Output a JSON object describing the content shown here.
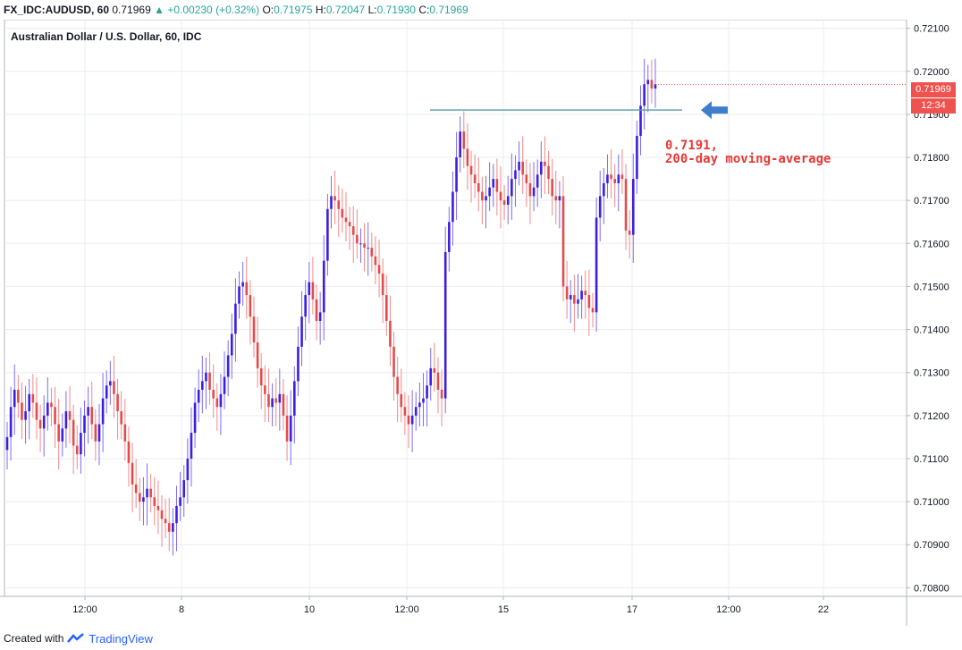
{
  "header": {
    "symbol": "FX_IDC:AUDUSD, 60",
    "last": "0.71969",
    "change": "+0.00230 (+0.32%)",
    "open_label": "O:",
    "open": "0.71975",
    "high_label": "H:",
    "high": "0.72047",
    "low_label": "L:",
    "low": "0.71930",
    "close_label": "C:",
    "close": "0.71969"
  },
  "chart_title": "Australian Dollar / U.S. Dollar, 60, IDC",
  "price_label": "0.71969",
  "countdown_label": "12:34",
  "annotation": {
    "line1": "0.7191,",
    "line2": "200-day moving-average",
    "level": 0.7191
  },
  "footer": {
    "created_with": "Created with",
    "brand": "TradingView"
  },
  "colors": {
    "up": "#2962ff",
    "down": "#ef5350",
    "up_candle": "#3b1fe0",
    "down_candle": "#e34b4b",
    "line": "#5e9ca8",
    "arrow": "#3d7fcd"
  },
  "chart_data": {
    "type": "candlestick",
    "title": "Australian Dollar / U.S. Dollar, 60, IDC",
    "ylim": [
      0.7078,
      0.7212
    ],
    "y_ticks": [
      "0.72100",
      "0.72000",
      "0.71900",
      "0.71800",
      "0.71700",
      "0.71600",
      "0.71500",
      "0.71400",
      "0.71300",
      "0.71200",
      "0.71100",
      "0.71000",
      "0.70900",
      "0.70800"
    ],
    "x_ticks": [
      "12:00",
      "8",
      "10",
      "12:00",
      "15",
      "17",
      "12:00",
      "22"
    ],
    "grid": true,
    "close_series": [
      0.7115,
      0.7122,
      0.7126,
      0.7123,
      0.7119,
      0.7121,
      0.7125,
      0.7123,
      0.7119,
      0.7117,
      0.712,
      0.7123,
      0.7122,
      0.7118,
      0.7114,
      0.7117,
      0.7121,
      0.7119,
      0.7113,
      0.7111,
      0.7116,
      0.712,
      0.7122,
      0.7118,
      0.7114,
      0.7118,
      0.7124,
      0.7127,
      0.7128,
      0.7125,
      0.7121,
      0.7118,
      0.7114,
      0.7109,
      0.7104,
      0.7102,
      0.71,
      0.7101,
      0.7103,
      0.7101,
      0.7099,
      0.7098,
      0.7096,
      0.7095,
      0.7093,
      0.7095,
      0.7099,
      0.7101,
      0.7105,
      0.711,
      0.7116,
      0.7123,
      0.7126,
      0.7128,
      0.713,
      0.7126,
      0.7124,
      0.7122,
      0.7125,
      0.7129,
      0.7134,
      0.7139,
      0.7146,
      0.715,
      0.7151,
      0.7148,
      0.7143,
      0.7137,
      0.7131,
      0.7127,
      0.7125,
      0.7122,
      0.7124,
      0.7123,
      0.7125,
      0.712,
      0.7114,
      0.712,
      0.7128,
      0.7136,
      0.7143,
      0.7148,
      0.7151,
      0.7147,
      0.7142,
      0.7144,
      0.7156,
      0.7168,
      0.7171,
      0.717,
      0.7168,
      0.7166,
      0.7165,
      0.7164,
      0.7162,
      0.716,
      0.716,
      0.7159,
      0.7159,
      0.7157,
      0.7155,
      0.7153,
      0.7148,
      0.7142,
      0.7136,
      0.7129,
      0.7125,
      0.7122,
      0.712,
      0.7118,
      0.712,
      0.7122,
      0.7123,
      0.7124,
      0.7127,
      0.7131,
      0.713,
      0.7126,
      0.7124,
      0.7158,
      0.7165,
      0.7172,
      0.718,
      0.7186,
      0.7182,
      0.7178,
      0.7176,
      0.7174,
      0.7172,
      0.717,
      0.7171,
      0.7173,
      0.7175,
      0.7172,
      0.717,
      0.7169,
      0.7171,
      0.7175,
      0.7177,
      0.7179,
      0.7176,
      0.7174,
      0.7171,
      0.7173,
      0.7176,
      0.7179,
      0.7178,
      0.7175,
      0.7171,
      0.717,
      0.7171,
      0.715,
      0.7147,
      0.7148,
      0.7146,
      0.7147,
      0.7149,
      0.7148,
      0.7145,
      0.7144,
      0.7166,
      0.7171,
      0.7174,
      0.7176,
      0.7175,
      0.7174,
      0.7176,
      0.7175,
      0.7163,
      0.7162,
      0.7175,
      0.7185,
      0.7192,
      0.7197,
      0.7198,
      0.7196,
      0.7197
    ]
  }
}
